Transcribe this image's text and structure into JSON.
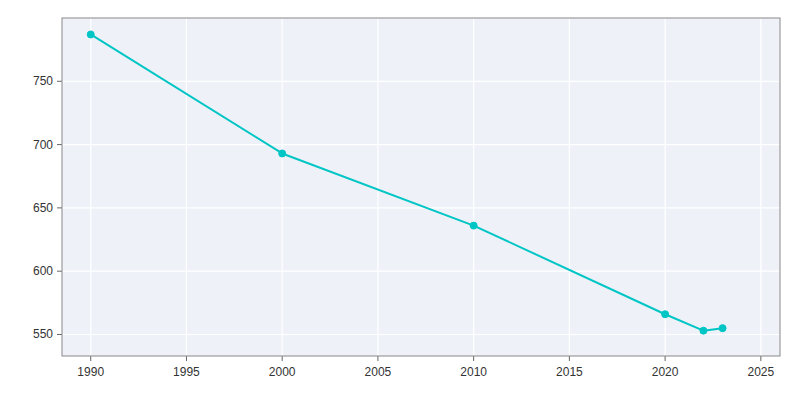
{
  "chart_data": {
    "type": "line",
    "x": [
      1990,
      2000,
      2010,
      2020,
      2022,
      2023
    ],
    "values": [
      787,
      693,
      636,
      566,
      553,
      555
    ],
    "color": "#00C5C5",
    "marker": "circle",
    "xlim": [
      1988.5,
      2026
    ],
    "ylim": [
      533,
      800
    ],
    "xticks": [
      1990,
      1995,
      2000,
      2005,
      2010,
      2015,
      2020,
      2025
    ],
    "yticks": [
      550,
      600,
      650,
      700,
      750
    ],
    "grid": true
  }
}
